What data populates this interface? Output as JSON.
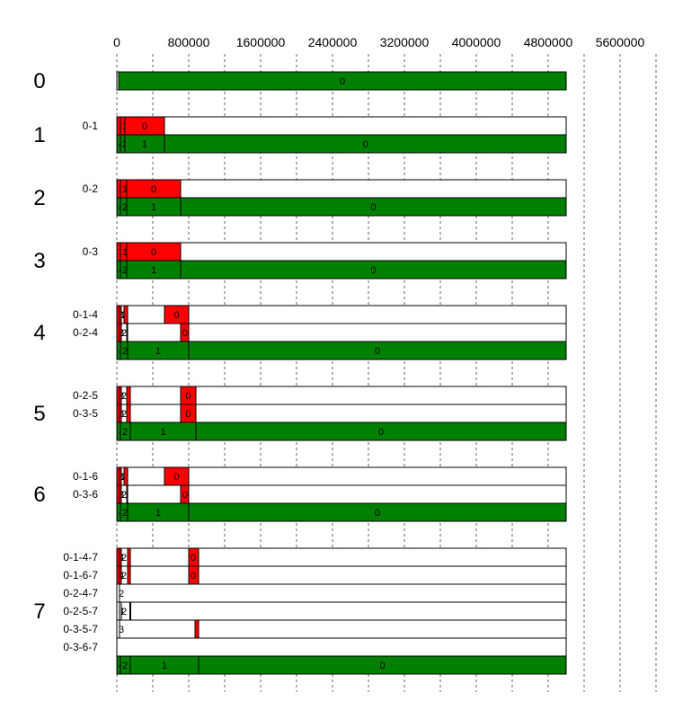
{
  "chart_data": {
    "type": "bar",
    "orientation": "horizontal",
    "title": "",
    "xlabel": "",
    "ylabel": "",
    "xlim": [
      0,
      5600000
    ],
    "x_ticks": [
      0,
      800000,
      1600000,
      2400000,
      3200000,
      4000000,
      4800000,
      5600000
    ],
    "x_tick_labels": [
      "0",
      "800000",
      "1600000",
      "2400000",
      "3200000",
      "4000000",
      "4800000",
      "5600000"
    ],
    "total": 5000000,
    "grid": true,
    "colors": {
      "green": "#008000",
      "red": "#ff0000",
      "frame": "#000000"
    },
    "groups": [
      {
        "label": "0",
        "rows": [
          {
            "path": "",
            "kind": "total",
            "segments": [
              {
                "start": 0,
                "end": 20000,
                "fill": "white",
                "label": "4"
              },
              {
                "start": 20000,
                "end": 5000000,
                "fill": "green",
                "label": "0"
              }
            ]
          }
        ]
      },
      {
        "label": "1",
        "rows": [
          {
            "path": "0-1",
            "kind": "path",
            "segments": [
              {
                "start": 0,
                "end": 40000,
                "fill": "red",
                "label": "3"
              },
              {
                "start": 40000,
                "end": 90000,
                "fill": "red",
                "label": "1"
              },
              {
                "start": 90000,
                "end": 530000,
                "fill": "red",
                "label": "0"
              }
            ]
          },
          {
            "path": "",
            "kind": "total",
            "segments": [
              {
                "start": 0,
                "end": 40000,
                "fill": "green",
                "label": "4"
              },
              {
                "start": 40000,
                "end": 90000,
                "fill": "green",
                "label": "2"
              },
              {
                "start": 90000,
                "end": 530000,
                "fill": "green",
                "label": "1"
              },
              {
                "start": 530000,
                "end": 5000000,
                "fill": "green",
                "label": "0"
              }
            ]
          }
        ]
      },
      {
        "label": "2",
        "rows": [
          {
            "path": "0-2",
            "kind": "path",
            "segments": [
              {
                "start": 0,
                "end": 40000,
                "fill": "red",
                "label": "3"
              },
              {
                "start": 40000,
                "end": 110000,
                "fill": "red",
                "label": "1"
              },
              {
                "start": 110000,
                "end": 710000,
                "fill": "red",
                "label": "0"
              }
            ]
          },
          {
            "path": "",
            "kind": "total",
            "segments": [
              {
                "start": 0,
                "end": 40000,
                "fill": "green",
                "label": "4"
              },
              {
                "start": 40000,
                "end": 110000,
                "fill": "green",
                "label": "2"
              },
              {
                "start": 110000,
                "end": 710000,
                "fill": "green",
                "label": "1"
              },
              {
                "start": 710000,
                "end": 5000000,
                "fill": "green",
                "label": "0"
              }
            ]
          }
        ]
      },
      {
        "label": "3",
        "rows": [
          {
            "path": "0-3",
            "kind": "path",
            "segments": [
              {
                "start": 0,
                "end": 40000,
                "fill": "red",
                "label": "3"
              },
              {
                "start": 40000,
                "end": 110000,
                "fill": "red",
                "label": "1"
              },
              {
                "start": 110000,
                "end": 710000,
                "fill": "red",
                "label": "0"
              }
            ]
          },
          {
            "path": "",
            "kind": "total",
            "segments": [
              {
                "start": 0,
                "end": 40000,
                "fill": "green",
                "label": "4"
              },
              {
                "start": 40000,
                "end": 110000,
                "fill": "green",
                "label": "2"
              },
              {
                "start": 110000,
                "end": 710000,
                "fill": "green",
                "label": "1"
              },
              {
                "start": 710000,
                "end": 5000000,
                "fill": "green",
                "label": "0"
              }
            ]
          }
        ]
      },
      {
        "label": "4",
        "rows": [
          {
            "path": "0-1-4",
            "kind": "path",
            "segments": [
              {
                "start": 0,
                "end": 30000,
                "fill": "red",
                "label": "3"
              },
              {
                "start": 30000,
                "end": 50000,
                "fill": "red",
                "label": "2"
              },
              {
                "start": 80000,
                "end": 120000,
                "fill": "red",
                "label": ""
              },
              {
                "start": 530000,
                "end": 800000,
                "fill": "red",
                "label": "0"
              }
            ]
          },
          {
            "path": "0-2-4",
            "kind": "path",
            "segments": [
              {
                "start": 0,
                "end": 30000,
                "fill": "red",
                "label": "3"
              },
              {
                "start": 30000,
                "end": 50000,
                "fill": "red",
                "label": "2"
              },
              {
                "start": 110000,
                "end": 120000,
                "fill": "red",
                "label": ""
              },
              {
                "start": 710000,
                "end": 800000,
                "fill": "red",
                "label": "0"
              }
            ]
          },
          {
            "path": "",
            "kind": "total",
            "segments": [
              {
                "start": 0,
                "end": 40000,
                "fill": "green",
                "label": "4"
              },
              {
                "start": 40000,
                "end": 120000,
                "fill": "green",
                "label": "2"
              },
              {
                "start": 120000,
                "end": 800000,
                "fill": "green",
                "label": "1"
              },
              {
                "start": 800000,
                "end": 5000000,
                "fill": "green",
                "label": "0"
              }
            ]
          }
        ]
      },
      {
        "label": "5",
        "rows": [
          {
            "path": "0-2-5",
            "kind": "path",
            "segments": [
              {
                "start": 0,
                "end": 30000,
                "fill": "red",
                "label": "3"
              },
              {
                "start": 30000,
                "end": 50000,
                "fill": "red",
                "label": "2"
              },
              {
                "start": 110000,
                "end": 150000,
                "fill": "red",
                "label": ""
              },
              {
                "start": 710000,
                "end": 880000,
                "fill": "red",
                "label": "0"
              }
            ]
          },
          {
            "path": "0-3-5",
            "kind": "path",
            "segments": [
              {
                "start": 0,
                "end": 30000,
                "fill": "red",
                "label": "3"
              },
              {
                "start": 30000,
                "end": 50000,
                "fill": "red",
                "label": "2"
              },
              {
                "start": 110000,
                "end": 150000,
                "fill": "red",
                "label": ""
              },
              {
                "start": 710000,
                "end": 880000,
                "fill": "red",
                "label": "0"
              }
            ]
          },
          {
            "path": "",
            "kind": "total",
            "segments": [
              {
                "start": 0,
                "end": 40000,
                "fill": "green",
                "label": "4"
              },
              {
                "start": 40000,
                "end": 150000,
                "fill": "green",
                "label": "2"
              },
              {
                "start": 150000,
                "end": 880000,
                "fill": "green",
                "label": "1"
              },
              {
                "start": 880000,
                "end": 5000000,
                "fill": "green",
                "label": "0"
              }
            ]
          }
        ]
      },
      {
        "label": "6",
        "rows": [
          {
            "path": "0-1-6",
            "kind": "path",
            "segments": [
              {
                "start": 0,
                "end": 30000,
                "fill": "red",
                "label": "3"
              },
              {
                "start": 30000,
                "end": 50000,
                "fill": "red",
                "label": "2"
              },
              {
                "start": 80000,
                "end": 120000,
                "fill": "red",
                "label": ""
              },
              {
                "start": 530000,
                "end": 800000,
                "fill": "red",
                "label": "0"
              }
            ]
          },
          {
            "path": "0-3-6",
            "kind": "path",
            "segments": [
              {
                "start": 0,
                "end": 30000,
                "fill": "red",
                "label": "3"
              },
              {
                "start": 30000,
                "end": 50000,
                "fill": "red",
                "label": "2"
              },
              {
                "start": 110000,
                "end": 120000,
                "fill": "red",
                "label": ""
              },
              {
                "start": 710000,
                "end": 800000,
                "fill": "red",
                "label": "0"
              }
            ]
          },
          {
            "path": "",
            "kind": "total",
            "segments": [
              {
                "start": 0,
                "end": 40000,
                "fill": "green",
                "label": "4"
              },
              {
                "start": 40000,
                "end": 120000,
                "fill": "green",
                "label": "2"
              },
              {
                "start": 120000,
                "end": 800000,
                "fill": "green",
                "label": "1"
              },
              {
                "start": 800000,
                "end": 5000000,
                "fill": "green",
                "label": "0"
              }
            ]
          }
        ]
      },
      {
        "label": "7",
        "rows": [
          {
            "path": "0-1-4-7",
            "kind": "path",
            "segments": [
              {
                "start": 0,
                "end": 30000,
                "fill": "red",
                "label": "4"
              },
              {
                "start": 30000,
                "end": 50000,
                "fill": "red",
                "label": "2"
              },
              {
                "start": 120000,
                "end": 150000,
                "fill": "red",
                "label": ""
              },
              {
                "start": 800000,
                "end": 910000,
                "fill": "red",
                "label": "0"
              }
            ]
          },
          {
            "path": "0-1-6-7",
            "kind": "path",
            "segments": [
              {
                "start": 0,
                "end": 30000,
                "fill": "red",
                "label": "4"
              },
              {
                "start": 30000,
                "end": 50000,
                "fill": "red",
                "label": "2"
              },
              {
                "start": 120000,
                "end": 150000,
                "fill": "red",
                "label": ""
              },
              {
                "start": 800000,
                "end": 910000,
                "fill": "red",
                "label": "0"
              }
            ]
          },
          {
            "path": "0-2-4-7",
            "kind": "path",
            "segments": [
              {
                "start": 0,
                "end": 30000,
                "fill": "white",
                "label": "2"
              }
            ]
          },
          {
            "path": "0-2-5-7",
            "kind": "path",
            "segments": [
              {
                "start": 0,
                "end": 30000,
                "fill": "white",
                "label": "4"
              },
              {
                "start": 30000,
                "end": 50000,
                "fill": "white",
                "label": "2"
              },
              {
                "start": 145000,
                "end": 155000,
                "fill": "black",
                "label": ""
              }
            ]
          },
          {
            "path": "0-3-5-7",
            "kind": "path",
            "segments": [
              {
                "start": 0,
                "end": 30000,
                "fill": "white",
                "label": "3"
              },
              {
                "start": 870000,
                "end": 910000,
                "fill": "red",
                "label": ""
              }
            ]
          },
          {
            "path": "0-3-6-7",
            "kind": "path",
            "segments": []
          },
          {
            "path": "",
            "kind": "total",
            "segments": [
              {
                "start": 0,
                "end": 40000,
                "fill": "green",
                "label": "4"
              },
              {
                "start": 40000,
                "end": 150000,
                "fill": "green",
                "label": "2"
              },
              {
                "start": 150000,
                "end": 910000,
                "fill": "green",
                "label": "1"
              },
              {
                "start": 910000,
                "end": 5000000,
                "fill": "green",
                "label": "0"
              }
            ]
          }
        ]
      }
    ]
  }
}
